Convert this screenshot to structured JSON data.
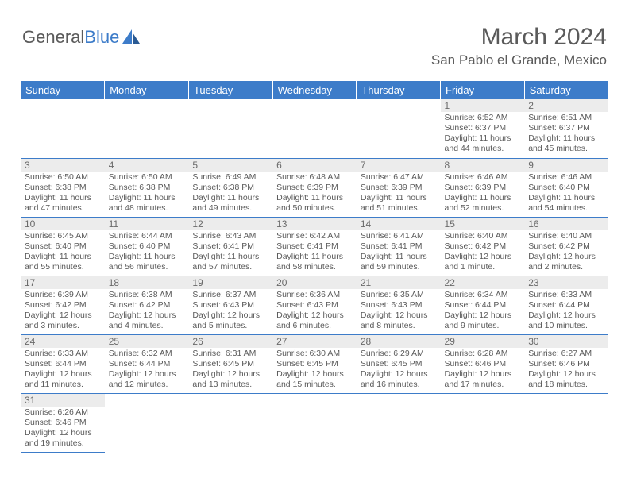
{
  "brand": {
    "part1": "General",
    "part2": "Blue"
  },
  "title": "March 2024",
  "location": "San Pablo el Grande, Mexico",
  "colors": {
    "accent": "#3d7cc9",
    "text": "#5a5a5a",
    "daynum_bg": "#ececec"
  },
  "day_headers": [
    "Sunday",
    "Monday",
    "Tuesday",
    "Wednesday",
    "Thursday",
    "Friday",
    "Saturday"
  ],
  "weeks": [
    [
      {
        "n": "",
        "sr": "",
        "ss": "",
        "dl": ""
      },
      {
        "n": "",
        "sr": "",
        "ss": "",
        "dl": ""
      },
      {
        "n": "",
        "sr": "",
        "ss": "",
        "dl": ""
      },
      {
        "n": "",
        "sr": "",
        "ss": "",
        "dl": ""
      },
      {
        "n": "",
        "sr": "",
        "ss": "",
        "dl": ""
      },
      {
        "n": "1",
        "sr": "Sunrise: 6:52 AM",
        "ss": "Sunset: 6:37 PM",
        "dl": "Daylight: 11 hours and 44 minutes."
      },
      {
        "n": "2",
        "sr": "Sunrise: 6:51 AM",
        "ss": "Sunset: 6:37 PM",
        "dl": "Daylight: 11 hours and 45 minutes."
      }
    ],
    [
      {
        "n": "3",
        "sr": "Sunrise: 6:50 AM",
        "ss": "Sunset: 6:38 PM",
        "dl": "Daylight: 11 hours and 47 minutes."
      },
      {
        "n": "4",
        "sr": "Sunrise: 6:50 AM",
        "ss": "Sunset: 6:38 PM",
        "dl": "Daylight: 11 hours and 48 minutes."
      },
      {
        "n": "5",
        "sr": "Sunrise: 6:49 AM",
        "ss": "Sunset: 6:38 PM",
        "dl": "Daylight: 11 hours and 49 minutes."
      },
      {
        "n": "6",
        "sr": "Sunrise: 6:48 AM",
        "ss": "Sunset: 6:39 PM",
        "dl": "Daylight: 11 hours and 50 minutes."
      },
      {
        "n": "7",
        "sr": "Sunrise: 6:47 AM",
        "ss": "Sunset: 6:39 PM",
        "dl": "Daylight: 11 hours and 51 minutes."
      },
      {
        "n": "8",
        "sr": "Sunrise: 6:46 AM",
        "ss": "Sunset: 6:39 PM",
        "dl": "Daylight: 11 hours and 52 minutes."
      },
      {
        "n": "9",
        "sr": "Sunrise: 6:46 AM",
        "ss": "Sunset: 6:40 PM",
        "dl": "Daylight: 11 hours and 54 minutes."
      }
    ],
    [
      {
        "n": "10",
        "sr": "Sunrise: 6:45 AM",
        "ss": "Sunset: 6:40 PM",
        "dl": "Daylight: 11 hours and 55 minutes."
      },
      {
        "n": "11",
        "sr": "Sunrise: 6:44 AM",
        "ss": "Sunset: 6:40 PM",
        "dl": "Daylight: 11 hours and 56 minutes."
      },
      {
        "n": "12",
        "sr": "Sunrise: 6:43 AM",
        "ss": "Sunset: 6:41 PM",
        "dl": "Daylight: 11 hours and 57 minutes."
      },
      {
        "n": "13",
        "sr": "Sunrise: 6:42 AM",
        "ss": "Sunset: 6:41 PM",
        "dl": "Daylight: 11 hours and 58 minutes."
      },
      {
        "n": "14",
        "sr": "Sunrise: 6:41 AM",
        "ss": "Sunset: 6:41 PM",
        "dl": "Daylight: 11 hours and 59 minutes."
      },
      {
        "n": "15",
        "sr": "Sunrise: 6:40 AM",
        "ss": "Sunset: 6:42 PM",
        "dl": "Daylight: 12 hours and 1 minute."
      },
      {
        "n": "16",
        "sr": "Sunrise: 6:40 AM",
        "ss": "Sunset: 6:42 PM",
        "dl": "Daylight: 12 hours and 2 minutes."
      }
    ],
    [
      {
        "n": "17",
        "sr": "Sunrise: 6:39 AM",
        "ss": "Sunset: 6:42 PM",
        "dl": "Daylight: 12 hours and 3 minutes."
      },
      {
        "n": "18",
        "sr": "Sunrise: 6:38 AM",
        "ss": "Sunset: 6:42 PM",
        "dl": "Daylight: 12 hours and 4 minutes."
      },
      {
        "n": "19",
        "sr": "Sunrise: 6:37 AM",
        "ss": "Sunset: 6:43 PM",
        "dl": "Daylight: 12 hours and 5 minutes."
      },
      {
        "n": "20",
        "sr": "Sunrise: 6:36 AM",
        "ss": "Sunset: 6:43 PM",
        "dl": "Daylight: 12 hours and 6 minutes."
      },
      {
        "n": "21",
        "sr": "Sunrise: 6:35 AM",
        "ss": "Sunset: 6:43 PM",
        "dl": "Daylight: 12 hours and 8 minutes."
      },
      {
        "n": "22",
        "sr": "Sunrise: 6:34 AM",
        "ss": "Sunset: 6:44 PM",
        "dl": "Daylight: 12 hours and 9 minutes."
      },
      {
        "n": "23",
        "sr": "Sunrise: 6:33 AM",
        "ss": "Sunset: 6:44 PM",
        "dl": "Daylight: 12 hours and 10 minutes."
      }
    ],
    [
      {
        "n": "24",
        "sr": "Sunrise: 6:33 AM",
        "ss": "Sunset: 6:44 PM",
        "dl": "Daylight: 12 hours and 11 minutes."
      },
      {
        "n": "25",
        "sr": "Sunrise: 6:32 AM",
        "ss": "Sunset: 6:44 PM",
        "dl": "Daylight: 12 hours and 12 minutes."
      },
      {
        "n": "26",
        "sr": "Sunrise: 6:31 AM",
        "ss": "Sunset: 6:45 PM",
        "dl": "Daylight: 12 hours and 13 minutes."
      },
      {
        "n": "27",
        "sr": "Sunrise: 6:30 AM",
        "ss": "Sunset: 6:45 PM",
        "dl": "Daylight: 12 hours and 15 minutes."
      },
      {
        "n": "28",
        "sr": "Sunrise: 6:29 AM",
        "ss": "Sunset: 6:45 PM",
        "dl": "Daylight: 12 hours and 16 minutes."
      },
      {
        "n": "29",
        "sr": "Sunrise: 6:28 AM",
        "ss": "Sunset: 6:46 PM",
        "dl": "Daylight: 12 hours and 17 minutes."
      },
      {
        "n": "30",
        "sr": "Sunrise: 6:27 AM",
        "ss": "Sunset: 6:46 PM",
        "dl": "Daylight: 12 hours and 18 minutes."
      }
    ],
    [
      {
        "n": "31",
        "sr": "Sunrise: 6:26 AM",
        "ss": "Sunset: 6:46 PM",
        "dl": "Daylight: 12 hours and 19 minutes."
      },
      {
        "n": "",
        "sr": "",
        "ss": "",
        "dl": ""
      },
      {
        "n": "",
        "sr": "",
        "ss": "",
        "dl": ""
      },
      {
        "n": "",
        "sr": "",
        "ss": "",
        "dl": ""
      },
      {
        "n": "",
        "sr": "",
        "ss": "",
        "dl": ""
      },
      {
        "n": "",
        "sr": "",
        "ss": "",
        "dl": ""
      },
      {
        "n": "",
        "sr": "",
        "ss": "",
        "dl": ""
      }
    ]
  ]
}
